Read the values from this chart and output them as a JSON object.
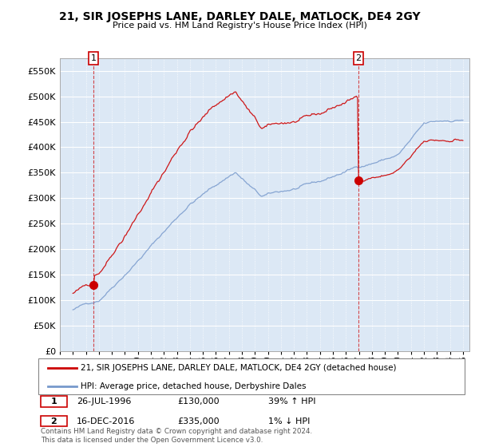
{
  "title": "21, SIR JOSEPHS LANE, DARLEY DALE, MATLOCK, DE4 2GY",
  "subtitle": "Price paid vs. HM Land Registry's House Price Index (HPI)",
  "legend_line1": "21, SIR JOSEPHS LANE, DARLEY DALE, MATLOCK, DE4 2GY (detached house)",
  "legend_line2": "HPI: Average price, detached house, Derbyshire Dales",
  "annotation1_date": "26-JUL-1996",
  "annotation1_price": "£130,000",
  "annotation1_hpi": "39% ↑ HPI",
  "annotation2_date": "16-DEC-2016",
  "annotation2_price": "£335,000",
  "annotation2_hpi": "1% ↓ HPI",
  "footnote": "Contains HM Land Registry data © Crown copyright and database right 2024.\nThis data is licensed under the Open Government Licence v3.0.",
  "red_line_color": "#cc0000",
  "blue_line_color": "#7799cc",
  "bg_color": "#dce8f5",
  "ylim": [
    0,
    575000
  ],
  "yticks": [
    0,
    50000,
    100000,
    150000,
    200000,
    250000,
    300000,
    350000,
    400000,
    450000,
    500000,
    550000
  ],
  "sale1_year": 1996.57,
  "sale1_price": 130000,
  "sale2_year": 2016.96,
  "sale2_price": 335000,
  "xmin": 1994.5,
  "xmax": 2025.5
}
